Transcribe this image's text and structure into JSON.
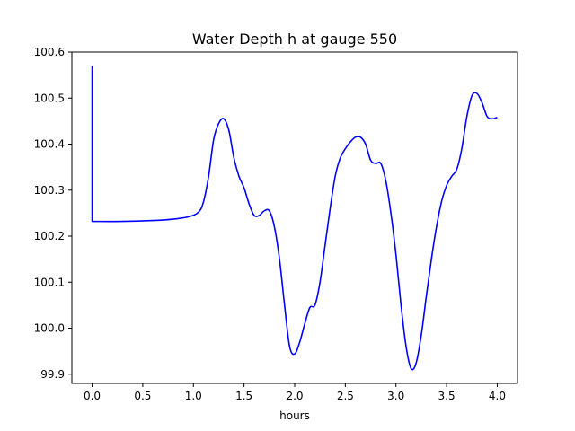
{
  "chart_data": {
    "type": "line",
    "title": "Water Depth h at gauge 550",
    "xlabel": "hours",
    "ylabel": "",
    "xlim": [
      -0.2,
      4.2
    ],
    "ylim": [
      99.88,
      100.6
    ],
    "xticks": [
      0.0,
      0.5,
      1.0,
      1.5,
      2.0,
      2.5,
      3.0,
      3.5,
      4.0
    ],
    "xtick_labels": [
      "0.0",
      "0.5",
      "1.0",
      "1.5",
      "2.0",
      "2.5",
      "3.0",
      "3.5",
      "4.0"
    ],
    "yticks": [
      99.9,
      100.0,
      100.1,
      100.2,
      100.3,
      100.4,
      100.5,
      100.6
    ],
    "ytick_labels": [
      "99.9",
      "100.0",
      "100.1",
      "100.2",
      "100.3",
      "100.4",
      "100.5",
      "100.6"
    ],
    "grid": false,
    "series": [
      {
        "color": "#0000ff",
        "x": [
          0.0,
          0.0,
          0.3,
          0.6,
          0.8,
          0.95,
          1.05,
          1.1,
          1.15,
          1.2,
          1.25,
          1.3,
          1.35,
          1.4,
          1.45,
          1.5,
          1.55,
          1.6,
          1.65,
          1.7,
          1.75,
          1.8,
          1.85,
          1.9,
          1.95,
          2.0,
          2.05,
          2.1,
          2.15,
          2.2,
          2.25,
          2.3,
          2.35,
          2.4,
          2.45,
          2.5,
          2.55,
          2.6,
          2.65,
          2.7,
          2.75,
          2.8,
          2.85,
          2.9,
          2.95,
          3.0,
          3.05,
          3.1,
          3.15,
          3.2,
          3.25,
          3.3,
          3.35,
          3.4,
          3.45,
          3.5,
          3.55,
          3.6,
          3.65,
          3.7,
          3.75,
          3.8,
          3.85,
          3.9,
          3.95,
          4.0
        ],
        "y": [
          100.57,
          100.232,
          100.232,
          100.234,
          100.237,
          100.242,
          100.252,
          100.275,
          100.33,
          100.41,
          100.445,
          100.455,
          100.43,
          100.37,
          100.33,
          100.305,
          100.27,
          100.245,
          100.245,
          100.255,
          100.255,
          100.22,
          100.15,
          100.05,
          99.96,
          99.944,
          99.97,
          100.01,
          100.045,
          100.05,
          100.1,
          100.18,
          100.26,
          100.33,
          100.37,
          100.39,
          100.405,
          100.415,
          100.415,
          100.4,
          100.365,
          100.358,
          100.358,
          100.32,
          100.25,
          100.16,
          100.05,
          99.96,
          99.912,
          99.925,
          99.985,
          100.07,
          100.15,
          100.22,
          100.275,
          100.31,
          100.33,
          100.345,
          100.39,
          100.46,
          100.505,
          100.51,
          100.49,
          100.46,
          100.455,
          100.458
        ]
      }
    ]
  }
}
